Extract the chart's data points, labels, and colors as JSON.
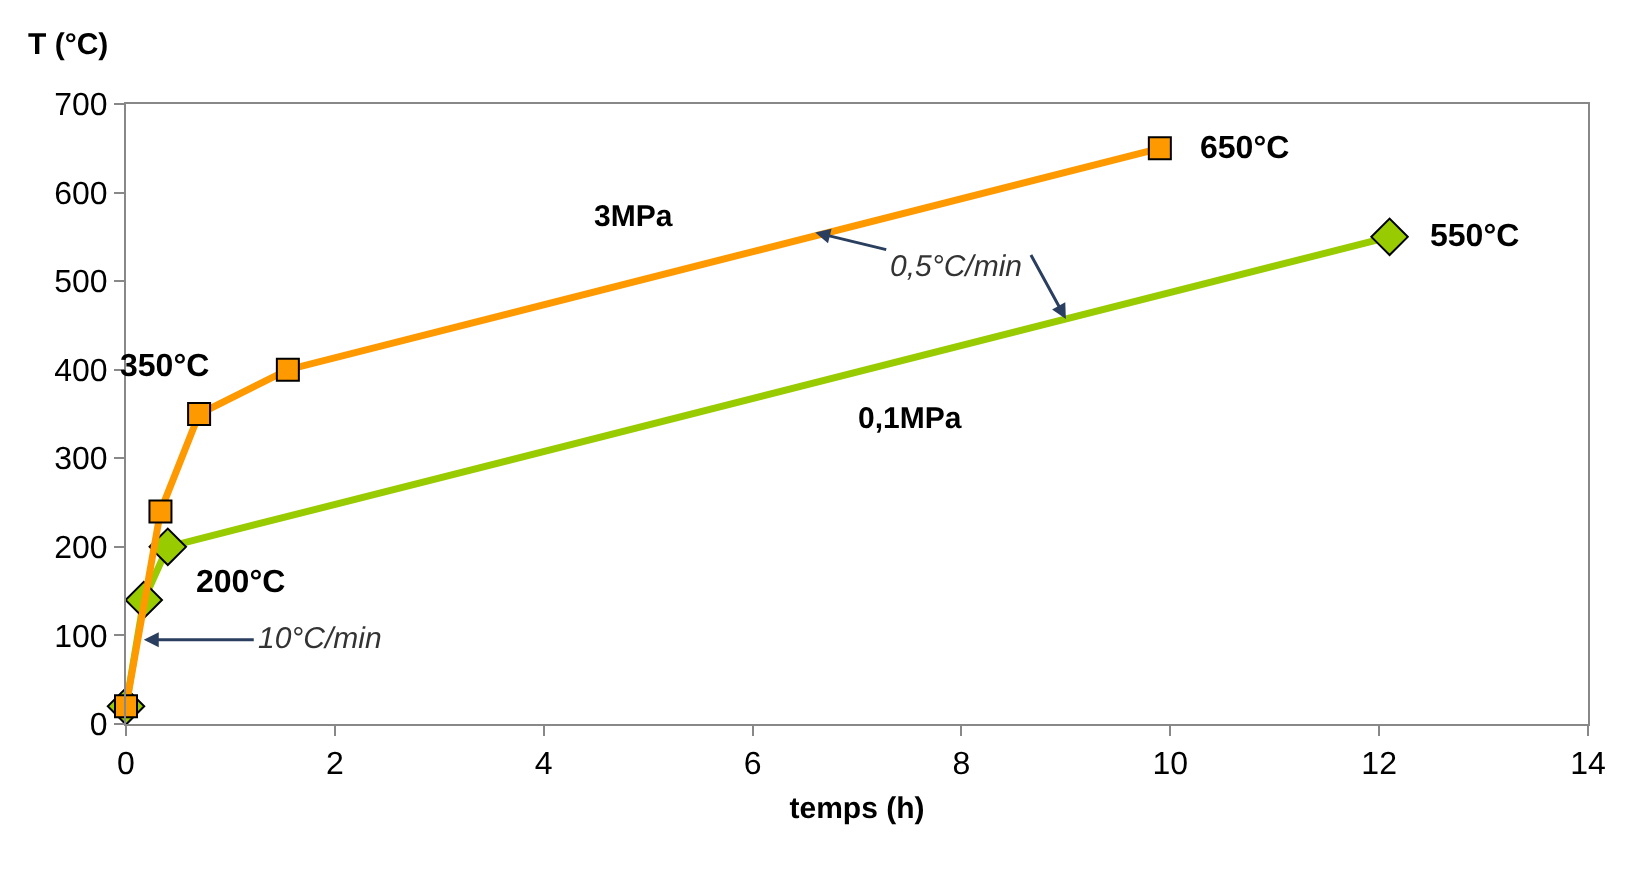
{
  "chart_data": {
    "type": "line",
    "xlabel": "temps (h)",
    "ylabel": "T (°C)",
    "xlim": [
      0,
      14
    ],
    "xticks": [
      0,
      2,
      4,
      6,
      8,
      10,
      12,
      14
    ],
    "ylim": [
      0,
      700
    ],
    "yticks": [
      0,
      100,
      200,
      300,
      400,
      500,
      600,
      700
    ],
    "legend": false,
    "series": [
      {
        "name": "3MPa",
        "color": "#ff9900",
        "marker": "square",
        "x": [
          0,
          0.33,
          0.7,
          1.55,
          9.9
        ],
        "values": [
          20,
          240,
          350,
          400,
          650
        ]
      },
      {
        "name": "0,1MPa",
        "color": "#99cc00",
        "marker": "diamond",
        "x": [
          0,
          0.17,
          0.4,
          12.1
        ],
        "values": [
          20,
          140,
          200,
          550
        ]
      }
    ],
    "annotations": [
      {
        "text": "350°C",
        "x": 0.7,
        "y": 350
      },
      {
        "text": "200°C",
        "x": 0.4,
        "y": 200
      },
      {
        "text": "650°C",
        "x": 9.9,
        "y": 650
      },
      {
        "text": "550°C",
        "x": 12.1,
        "y": 550
      },
      {
        "text": "10°C/min",
        "x": 0.17,
        "y": 95
      },
      {
        "text": "0,5°C/min",
        "x": 6.6,
        "y": 555
      }
    ]
  }
}
